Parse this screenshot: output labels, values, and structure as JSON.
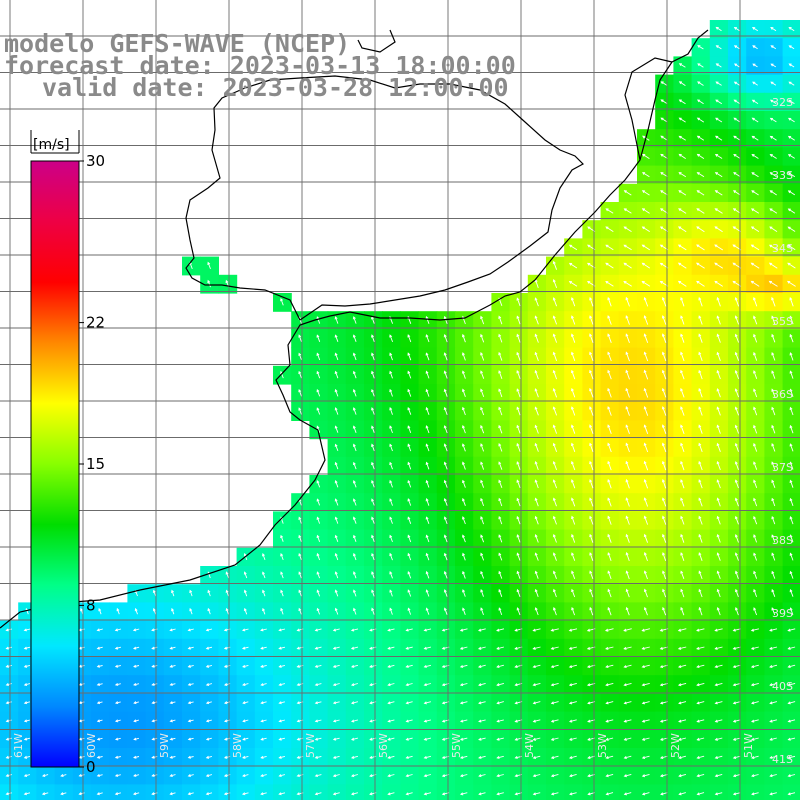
{
  "header": {
    "model": "modelo GEFS-WAVE (NCEP)",
    "forecast_date": "forecast date: 2023-03-13 18:00:00",
    "valid_date": "valid date: 2023-03-28 12:00:00"
  },
  "colorbar": {
    "unit": "[m/s]",
    "min": 0,
    "max": 30,
    "ticks": [
      {
        "value": 30,
        "label": "30"
      },
      {
        "value": 22,
        "label": "22"
      },
      {
        "value": 15,
        "label": "15"
      },
      {
        "value": 8,
        "label": "8"
      },
      {
        "value": 0,
        "label": "0"
      }
    ],
    "colors": [
      "#0000ff",
      "#0088ff",
      "#00e8ff",
      "#00ff88",
      "#00dd00",
      "#88ff00",
      "#ffff00",
      "#ff8800",
      "#ff0000",
      "#ee0044",
      "#cc0088"
    ]
  },
  "axis_labels": {
    "longitude": [
      "61W",
      "60W",
      "59W",
      "58W",
      "57W",
      "56W",
      "55W",
      "54W",
      "53W",
      "52W",
      "51W"
    ],
    "latitude": [
      "32S",
      "33S",
      "34S",
      "35S",
      "36S",
      "37S",
      "38S",
      "39S",
      "40S",
      "41S"
    ]
  },
  "arrow_color": "#ffffff"
}
